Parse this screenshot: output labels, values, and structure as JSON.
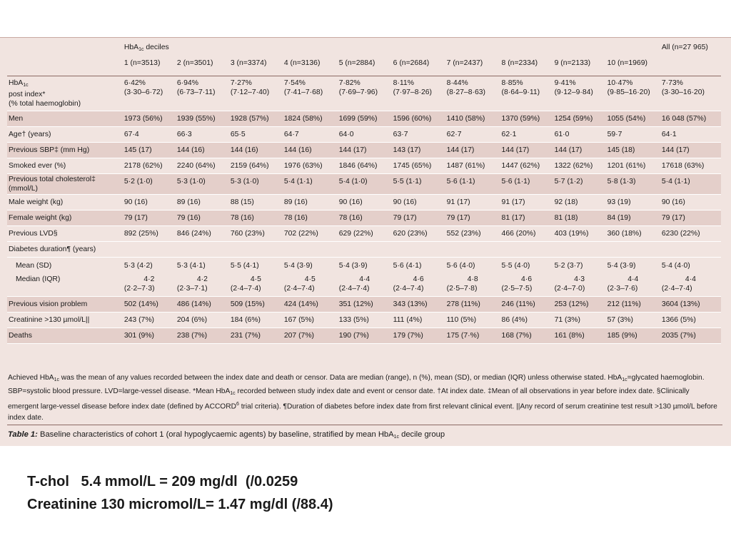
{
  "table": {
    "group_header": "HbA1c deciles",
    "group_header_parts": {
      "a": "HbA",
      "sub": "1c",
      "b": " deciles"
    },
    "all_header": "All (n=27 965)",
    "columns": [
      "1 (n=3513)",
      "2 (n=3501)",
      "3 (n=3374)",
      "4 (n=3136)",
      "5 (n=2884)",
      "6 (n=2684)",
      "7 (n=2437)",
      "8 (n=2334)",
      "9 (n=2133)",
      "10 (n=1969)"
    ],
    "hba1c_label": {
      "a": "HbA",
      "sub": "1c",
      "line2": "post index*",
      "line3": "(% total haemoglobin)"
    },
    "hba1c_means": [
      "6·42%",
      "6·94%",
      "7·27%",
      "7·54%",
      "7·82%",
      "8·11%",
      "8·44%",
      "8·85%",
      "9·41%",
      "10·47%",
      "7·73%"
    ],
    "hba1c_ranges": [
      "(3·30–6·72)",
      "(6·73–7·11)",
      "(7·12–7·40)",
      "(7·41–7·68)",
      "(7·69–7·96)",
      "(7·97–8·26)",
      "(8·27–8·63)",
      "(8·64–9·11)",
      "(9·12–9·84)",
      "(9·85–16·20)",
      "(3·30–16·20)"
    ],
    "rows": [
      {
        "label": "Men",
        "values": [
          "1973 (56%)",
          "1939 (55%)",
          "1928 (57%)",
          "1824 (58%)",
          "1699 (59%)",
          "1596 (60%)",
          "1410 (58%)",
          "1370 (59%)",
          "1254 (59%)",
          "1055 (54%)",
          "16 048 (57%)"
        ]
      },
      {
        "label": "Age† (years)",
        "values": [
          "67·4",
          "66·3",
          "65·5",
          "64·7",
          "64·0",
          "63·7",
          "62·7",
          "62·1",
          "61·0",
          "59·7",
          "64·1"
        ]
      },
      {
        "label": "Previous SBP‡ (mm Hg)",
        "values": [
          "145 (17)",
          "144 (16)",
          "144 (16)",
          "144 (16)",
          "144 (17)",
          "143 (17)",
          "144 (17)",
          "144 (17)",
          "144 (17)",
          "145 (18)",
          "144 (17)"
        ]
      },
      {
        "label": "Smoked ever (%)",
        "values": [
          "2178 (62%)",
          "2240 (64%)",
          "2159 (64%)",
          "1976 (63%)",
          "1846 (64%)",
          "1745 (65%)",
          "1487 (61%)",
          "1447 (62%)",
          "1322 (62%)",
          "1201 (61%)",
          "17618 (63%)"
        ]
      },
      {
        "label": "Previous total cholesterol‡",
        "label2": "(mmol/L)",
        "values": [
          "5·2 (1·0)",
          "5·3 (1·0)",
          "5·3 (1·0)",
          "5·4 (1·1)",
          "5·4 (1·0)",
          "5·5 (1·1)",
          "5·6 (1·1)",
          "5·6 (1·1)",
          "5·7 (1·2)",
          "5·8 (1·3)",
          "5·4 (1·1)"
        ]
      },
      {
        "label": "Male weight (kg)",
        "values": [
          "90 (16)",
          "89 (16)",
          "88 (15)",
          "89 (16)",
          "90 (16)",
          "90 (16)",
          "91 (17)",
          "91 (17)",
          "92 (18)",
          "93 (19)",
          "90 (16)"
        ]
      },
      {
        "label": "Female weight (kg)",
        "values": [
          "79 (17)",
          "79 (16)",
          "78 (16)",
          "78 (16)",
          "78 (16)",
          "79 (17)",
          "79 (17)",
          "81 (17)",
          "81 (18)",
          "84 (19)",
          "79 (17)"
        ]
      },
      {
        "label": "Previous LVD§",
        "values": [
          "892 (25%)",
          "846 (24%)",
          "760 (23%)",
          "702 (22%)",
          "629 (22%)",
          "620 (23%)",
          "552 (23%)",
          "466 (20%)",
          "403 (19%)",
          "360 (18%)",
          "6230 (22%)"
        ]
      }
    ],
    "duration": {
      "label": "Diabetes duration¶ (years)",
      "mean_label": "Mean (SD)",
      "mean_values": [
        "5·3 (4·2)",
        "5·3 (4·1)",
        "5·5 (4·1)",
        "5·4 (3·9)",
        "5·4 (3·9)",
        "5·6 (4·1)",
        "5·6 (4·0)",
        "5·5 (4·0)",
        "5·2 (3·7)",
        "5·4 (3·9)",
        "5·4 (4·0)"
      ],
      "median_label": "Median (IQR)",
      "median_values": [
        "4·2",
        "4·2",
        "4·5",
        "4·5",
        "4·4",
        "4·6",
        "4·8",
        "4·6",
        "4·3",
        "4·4",
        "4·4"
      ],
      "iqr_values": [
        "(2·2–7·3)",
        "(2·3–7·1)",
        "(2·4–7·4)",
        "(2·4–7·4)",
        "(2·4–7·4)",
        "(2·4–7·4)",
        "(2·5–7·8)",
        "(2·5–7·5)",
        "(2·4–7·0)",
        "(2·3–7·6)",
        "(2·4–7·4)"
      ]
    },
    "tail_rows": [
      {
        "label": "Previous vision problem",
        "values": [
          "502 (14%)",
          "486 (14%)",
          "509 (15%)",
          "424 (14%)",
          "351 (12%)",
          "343 (13%)",
          "278 (11%)",
          "246 (11%)",
          "253 (12%)",
          "212 (11%)",
          "3604 (13%)"
        ]
      },
      {
        "label": "Creatinine >130 µmol/L||",
        "values": [
          "243 (7%)",
          "204 (6%)",
          "184 (6%)",
          "167 (5%)",
          "133 (5%)",
          "111 (4%)",
          "110 (5%)",
          "86 (4%)",
          "71 (3%)",
          "57 (3%)",
          "1366 (5%)"
        ]
      },
      {
        "label": "Deaths",
        "values": [
          "301 (9%)",
          "238 (7%)",
          "231 (7%)",
          "207 (7%)",
          "190 (7%)",
          "179 (7%)",
          "175 (7·%)",
          "168 (7%)",
          "161 (8%)",
          "185 (9%)",
          "2035 (7%)"
        ]
      }
    ]
  },
  "footnote": {
    "p1": "Achieved HbA",
    "s1": "1c",
    "p2": " was the mean of any values recorded between the index date and death or censor. Data are median (range), n (%), mean (SD), or median (IQR) unless otherwise stated. HbA",
    "s2": "1c",
    "p3": "=glycated haemoglobin. SBP=systolic blood pressure. LVD=large-vessel disease. *Mean HbA",
    "s3": "1c",
    "p4": " recorded between study index date and event or censor date. †At index date. ‡Mean of all observations in year before index date. §Clinically emergent large-vessel disease before index date (defined by ACCORD",
    "s4": "6",
    "p5": " trial criteria). ¶Duration of diabetes before index date from first relevant clinical event. ||Any record of serum creatinine test result >130 µmol/L before index date."
  },
  "caption": {
    "label": "Table 1:",
    "text_a": " Baseline characteristics of cohort 1 (oral hypoglycaemic agents) by baseline, stratified by mean HbA",
    "sub": "1c",
    "text_b": " decile group"
  },
  "notes": {
    "line1": "T-chol   5.4 mmol/L = 209 mg/dl  (/0.0259",
    "line2": "Creatinine 130 micromol/L= 1.47 mg/dl (/88.4)"
  }
}
